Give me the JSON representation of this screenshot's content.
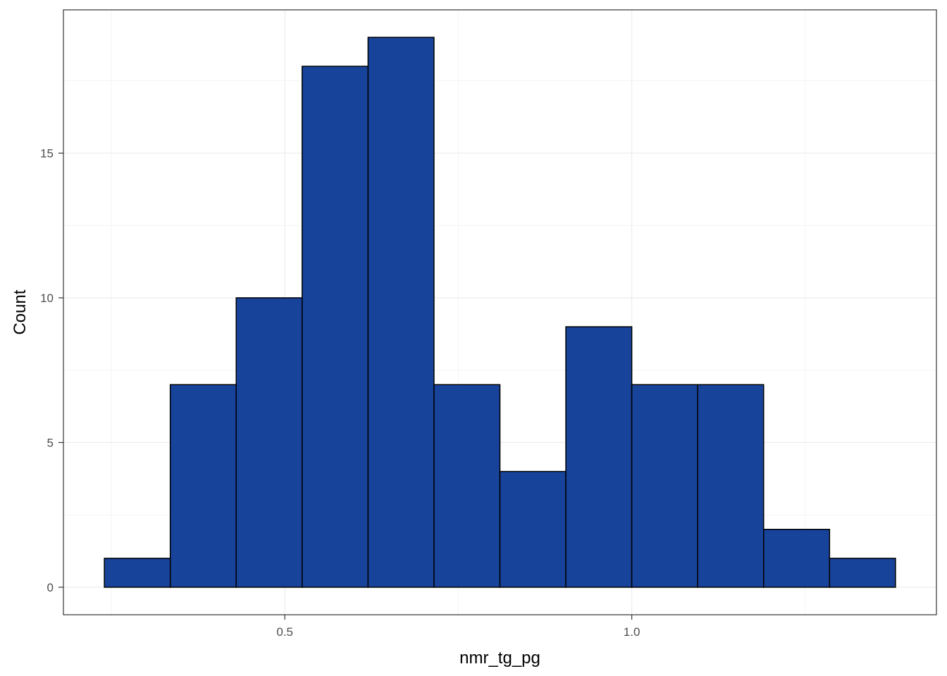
{
  "chart_data": {
    "type": "bar",
    "histogram": true,
    "xlabel": "nmr_tg_pg",
    "ylabel": "Count",
    "bin_edges": [
      0.24,
      0.335,
      0.43,
      0.525,
      0.62,
      0.715,
      0.81,
      0.905,
      1.0,
      1.095,
      1.19,
      1.285,
      1.38
    ],
    "values": [
      1,
      7,
      10,
      18,
      19,
      7,
      4,
      9,
      7,
      7,
      2,
      1
    ],
    "xlim": [
      0.181,
      1.439
    ],
    "ylim": [
      -0.95,
      19.95
    ],
    "x_ticks": [
      0.5,
      1.0
    ],
    "x_tick_labels": [
      "0.5",
      "1.0"
    ],
    "y_ticks": [
      0,
      5,
      10,
      15
    ],
    "y_tick_labels": [
      "0",
      "5",
      "10",
      "15"
    ],
    "grid": true,
    "bar_color": "#18439a",
    "bar_edge_color": "#000000"
  }
}
